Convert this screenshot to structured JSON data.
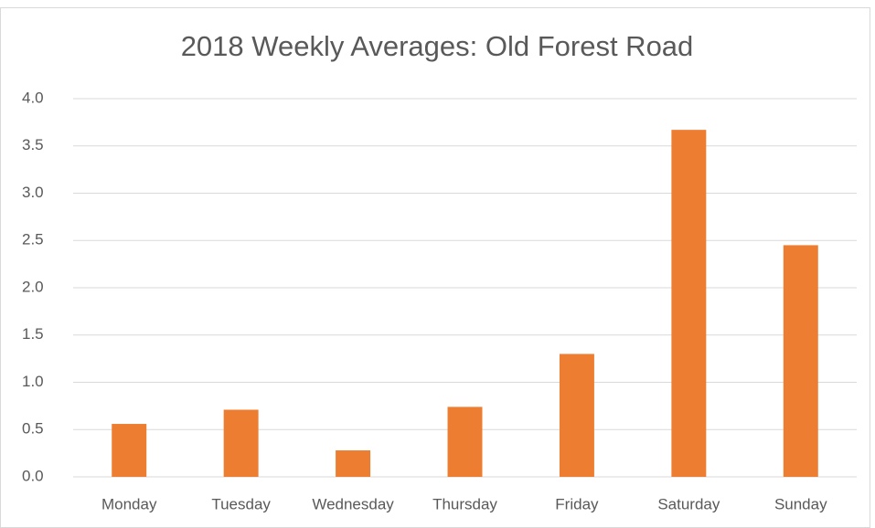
{
  "chart_data": {
    "type": "bar",
    "title": "2018 Weekly Averages: Old Forest Road",
    "categories": [
      "Monday",
      "Tuesday",
      "Wednesday",
      "Thursday",
      "Friday",
      "Saturday",
      "Sunday"
    ],
    "values": [
      0.56,
      0.71,
      0.28,
      0.74,
      1.3,
      3.67,
      2.45
    ],
    "color": "#ed7d31",
    "ylim": [
      0,
      4
    ],
    "yticks": [
      {
        "value": 0,
        "label": "0.0"
      },
      0.5,
      {
        "value": 1,
        "label": "1.0"
      },
      1.5,
      {
        "value": 2,
        "label": "2.0"
      },
      2.5,
      {
        "value": 3,
        "label": "3.0"
      },
      3.5,
      {
        "value": 4,
        "label": "4.0"
      }
    ],
    "grid": true
  }
}
